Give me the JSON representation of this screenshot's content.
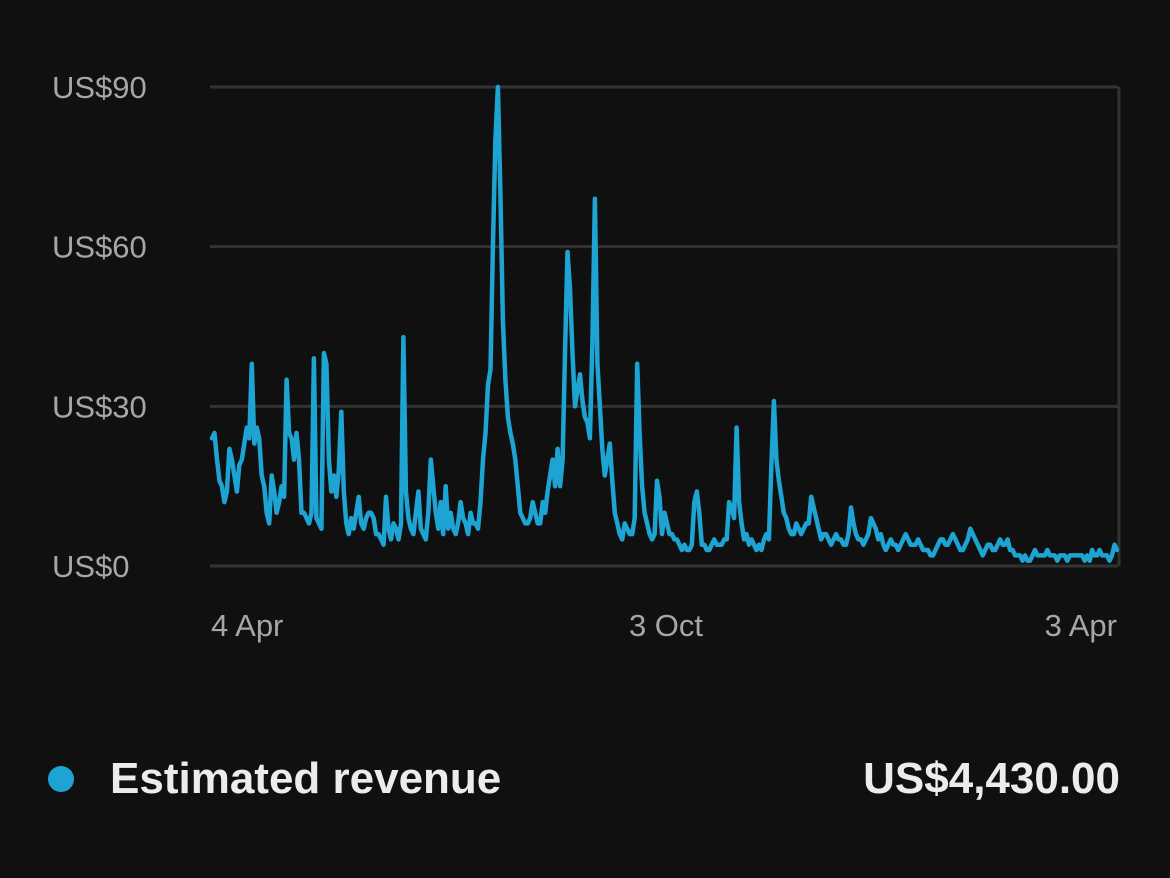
{
  "chart_data": {
    "type": "line",
    "colors": {
      "series": "#1ea4d2",
      "grid": "#333335",
      "background": "#101011"
    },
    "y_ticks": [
      "US$0",
      "US$30",
      "US$60",
      "US$90"
    ],
    "y_tick_values": [
      0,
      30,
      60,
      90
    ],
    "x_ticks": [
      "4 Apr",
      "3 Oct",
      "3 Apr"
    ],
    "ylim": [
      0,
      90
    ],
    "grid": true,
    "series": [
      {
        "name": "Estimated revenue",
        "total": "US$4,430.00",
        "values": [
          24,
          25,
          20,
          16,
          15,
          12,
          14,
          22,
          20,
          17,
          14,
          19,
          20,
          23,
          26,
          24,
          38,
          23,
          26,
          24,
          17,
          15,
          10,
          8,
          17,
          14,
          10,
          12,
          15,
          13,
          35,
          25,
          24,
          20,
          25,
          20,
          10,
          10,
          9,
          8,
          10,
          39,
          9,
          8,
          7,
          40,
          38,
          20,
          14,
          17,
          13,
          18,
          29,
          14,
          8,
          6,
          9,
          7,
          10,
          13,
          8,
          7,
          9,
          10,
          10,
          9,
          6,
          6,
          5,
          4,
          13,
          7,
          5,
          8,
          7,
          5,
          8,
          43,
          14,
          9,
          7,
          6,
          10,
          14,
          7,
          6,
          5,
          10,
          20,
          15,
          10,
          7,
          12,
          6,
          15,
          7,
          10,
          7,
          6,
          8,
          12,
          9,
          8,
          6,
          10,
          8,
          8,
          7,
          12,
          20,
          25,
          34,
          37,
          60,
          80,
          90,
          70,
          46,
          35,
          28,
          25,
          23,
          20,
          15,
          10,
          9,
          8,
          8,
          9,
          12,
          10,
          8,
          8,
          12,
          10,
          14,
          17,
          20,
          15,
          22,
          15,
          20,
          40,
          59,
          52,
          40,
          30,
          33,
          36,
          31,
          28,
          27,
          24,
          42,
          69,
          38,
          30,
          22,
          17,
          20,
          23,
          16,
          10,
          8,
          6,
          5,
          8,
          7,
          6,
          6,
          9,
          38,
          25,
          15,
          10,
          8,
          6,
          5,
          6,
          16,
          13,
          6,
          10,
          8,
          6,
          6,
          5,
          5,
          4,
          3,
          4,
          3,
          3,
          4,
          12,
          14,
          10,
          4,
          4,
          3,
          3,
          4,
          5,
          4,
          4,
          4,
          5,
          5,
          12,
          11,
          9,
          26,
          12,
          8,
          5,
          6,
          4,
          5,
          4,
          3,
          4,
          3,
          5,
          6,
          5,
          19,
          31,
          20,
          16,
          13,
          10,
          9,
          7,
          6,
          6,
          8,
          7,
          6,
          7,
          8,
          8,
          13,
          11,
          9,
          7,
          5,
          6,
          6,
          5,
          4,
          5,
          6,
          5,
          5,
          4,
          4,
          6,
          11,
          8,
          6,
          5,
          5,
          4,
          5,
          6,
          9,
          8,
          7,
          5,
          6,
          4,
          3,
          4,
          5,
          4,
          4,
          3,
          4,
          5,
          6,
          5,
          4,
          4,
          4,
          5,
          4,
          3,
          3,
          3,
          2,
          2,
          3,
          4,
          5,
          5,
          4,
          4,
          5,
          6,
          5,
          4,
          3,
          3,
          4,
          5,
          7,
          6,
          5,
          4,
          3,
          2,
          3,
          4,
          4,
          3,
          3,
          4,
          5,
          4,
          4,
          5,
          3,
          3,
          2,
          2,
          2,
          1,
          2,
          1,
          1,
          2,
          3,
          2,
          2,
          2,
          2,
          3,
          2,
          2,
          2,
          1,
          2,
          2,
          2,
          1,
          2,
          2,
          2,
          2,
          2,
          2,
          1,
          2,
          1,
          3,
          2,
          2,
          3,
          2,
          2,
          2,
          1,
          2,
          4,
          3
        ]
      }
    ]
  }
}
